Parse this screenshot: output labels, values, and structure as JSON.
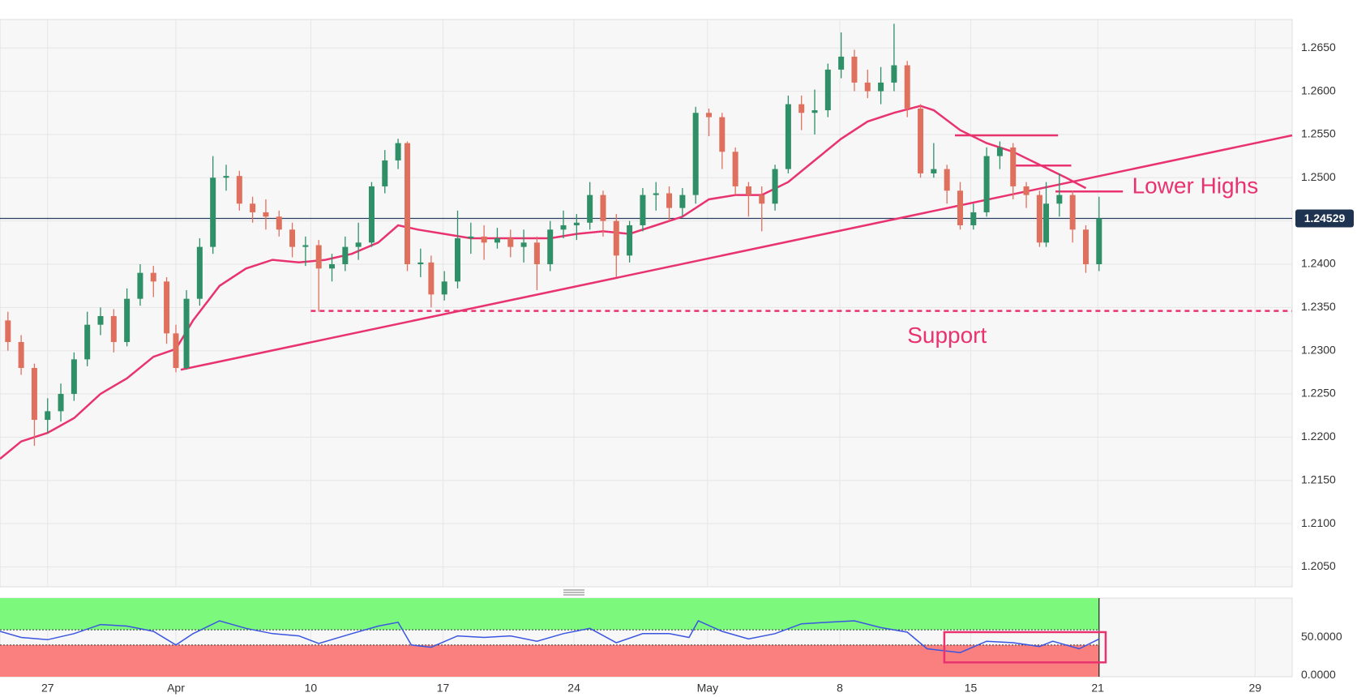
{
  "chart_data": [
    {
      "type": "candlestick",
      "xlim": [
        -0.36,
        9.41
      ],
      "ylim": [
        1.2027,
        1.2683
      ],
      "xticks": [
        {
          "value": 0,
          "label": "27"
        },
        {
          "value": 0.97,
          "label": "Apr"
        },
        {
          "value": 1.99,
          "label": "10"
        },
        {
          "value": 2.99,
          "label": "17"
        },
        {
          "value": 3.98,
          "label": "24"
        },
        {
          "value": 4.99,
          "label": "May"
        },
        {
          "value": 5.99,
          "label": "8"
        },
        {
          "value": 6.98,
          "label": "15"
        },
        {
          "value": 7.94,
          "label": "21"
        },
        {
          "value": 9.13,
          "label": "29"
        }
      ],
      "yticks": [
        {
          "value": 1.205,
          "label": "1.2050"
        },
        {
          "value": 1.21,
          "label": "1.2100"
        },
        {
          "value": 1.215,
          "label": "1.2150"
        },
        {
          "value": 1.22,
          "label": "1.2200"
        },
        {
          "value": 1.225,
          "label": "1.2250"
        },
        {
          "value": 1.23,
          "label": "1.2300"
        },
        {
          "value": 1.235,
          "label": "1.2350"
        },
        {
          "value": 1.24,
          "label": "1.2400"
        },
        {
          "value": 1.245,
          "label": "1.2450"
        },
        {
          "value": 1.25,
          "label": "1.2500"
        },
        {
          "value": 1.255,
          "label": "1.2550"
        },
        {
          "value": 1.26,
          "label": "1.2600"
        },
        {
          "value": 1.265,
          "label": "1.2650"
        }
      ],
      "grid": true,
      "up_color": "#2f8f67",
      "down_color": "#e0705e",
      "candles": {
        "x": [
          -0.3,
          -0.2,
          -0.1,
          0,
          0.1,
          0.2,
          0.3,
          0.4,
          0.5,
          0.6,
          0.7,
          0.8,
          0.9,
          0.97,
          1.05,
          1.15,
          1.25,
          1.35,
          1.45,
          1.55,
          1.65,
          1.75,
          1.85,
          1.95,
          2.05,
          2.15,
          2.25,
          2.35,
          2.45,
          2.55,
          2.65,
          2.72,
          2.82,
          2.9,
          3.0,
          3.1,
          3.2,
          3.3,
          3.4,
          3.5,
          3.6,
          3.7,
          3.8,
          3.9,
          4.0,
          4.1,
          4.2,
          4.3,
          4.4,
          4.5,
          4.6,
          4.7,
          4.8,
          4.9,
          5.0,
          5.1,
          5.2,
          5.3,
          5.4,
          5.5,
          5.6,
          5.7,
          5.8,
          5.9,
          6.0,
          6.1,
          6.2,
          6.3,
          6.4,
          6.5,
          6.6,
          6.7,
          6.8,
          6.9,
          7.0,
          7.1,
          7.2,
          7.3,
          7.4,
          7.5,
          7.55,
          7.65,
          7.75,
          7.85,
          7.95
        ],
        "open": [
          1.2335,
          1.231,
          1.228,
          1.222,
          1.223,
          1.225,
          1.229,
          1.233,
          1.234,
          1.231,
          1.236,
          1.239,
          1.238,
          1.232,
          1.228,
          1.236,
          1.242,
          1.25,
          1.2502,
          1.247,
          1.246,
          1.2455,
          1.244,
          1.242,
          1.2422,
          1.2395,
          1.24,
          1.242,
          1.2425,
          1.249,
          1.252,
          1.254,
          1.24,
          1.2402,
          1.2365,
          1.238,
          1.243,
          1.2432,
          1.2425,
          1.243,
          1.242,
          1.2425,
          1.24,
          1.244,
          1.2445,
          1.2448,
          1.248,
          1.245,
          1.241,
          1.2445,
          1.248,
          1.2482,
          1.2465,
          1.248,
          1.2575,
          1.257,
          1.253,
          1.249,
          1.248,
          1.247,
          1.251,
          1.2585,
          1.2575,
          1.2578,
          1.2625,
          1.264,
          1.261,
          1.26,
          1.261,
          1.263,
          1.258,
          1.2505,
          1.251,
          1.2485,
          1.2445,
          1.246,
          1.2525,
          1.2535,
          1.249,
          1.248,
          1.2425,
          1.247,
          1.248,
          1.244,
          1.24
        ],
        "high": [
          1.2345,
          1.2318,
          1.2285,
          1.2245,
          1.2262,
          1.2298,
          1.2345,
          1.235,
          1.2348,
          1.2372,
          1.24,
          1.2398,
          1.2385,
          1.233,
          1.237,
          1.243,
          1.2525,
          1.2515,
          1.2508,
          1.2478,
          1.2475,
          1.2462,
          1.2448,
          1.2432,
          1.2428,
          1.2412,
          1.2432,
          1.2448,
          1.2495,
          1.2532,
          1.2545,
          1.2542,
          1.2418,
          1.241,
          1.2392,
          1.2462,
          1.2448,
          1.2445,
          1.2442,
          1.244,
          1.244,
          1.2432,
          1.245,
          1.2462,
          1.2458,
          1.2495,
          1.2485,
          1.2458,
          1.245,
          1.2488,
          1.2495,
          1.249,
          1.2488,
          1.2582,
          1.258,
          1.2575,
          1.2535,
          1.2495,
          1.249,
          1.2515,
          1.2595,
          1.2595,
          1.2602,
          1.2632,
          1.2668,
          1.2648,
          1.2625,
          1.2628,
          1.2678,
          1.2635,
          1.2585,
          1.254,
          1.2515,
          1.2495,
          1.247,
          1.2535,
          1.2542,
          1.254,
          1.2495,
          1.2485,
          1.2495,
          1.2505,
          1.2485,
          1.2445,
          1.2478
        ],
        "low": [
          1.23,
          1.2272,
          1.219,
          1.2205,
          1.2218,
          1.2242,
          1.2282,
          1.2318,
          1.2298,
          1.2305,
          1.2352,
          1.2362,
          1.2308,
          1.2275,
          1.2278,
          1.2352,
          1.2412,
          1.2485,
          1.2462,
          1.2448,
          1.244,
          1.2432,
          1.2408,
          1.2398,
          1.2345,
          1.238,
          1.2392,
          1.2405,
          1.242,
          1.2482,
          1.251,
          1.2392,
          1.2385,
          1.235,
          1.2358,
          1.2372,
          1.2412,
          1.2405,
          1.2418,
          1.2408,
          1.2402,
          1.237,
          1.2392,
          1.243,
          1.2428,
          1.244,
          1.2432,
          1.2385,
          1.2402,
          1.2438,
          1.2462,
          1.245,
          1.2455,
          1.247,
          1.2548,
          1.251,
          1.248,
          1.2455,
          1.2438,
          1.2462,
          1.2505,
          1.2555,
          1.255,
          1.257,
          1.2615,
          1.26,
          1.2592,
          1.2585,
          1.26,
          1.257,
          1.25,
          1.25,
          1.247,
          1.244,
          1.244,
          1.2455,
          1.251,
          1.2475,
          1.2465,
          1.242,
          1.242,
          1.2455,
          1.2425,
          1.239,
          1.2392
        ],
        "close": [
          1.231,
          1.228,
          1.222,
          1.223,
          1.225,
          1.229,
          1.233,
          1.234,
          1.231,
          1.236,
          1.239,
          1.238,
          1.232,
          1.228,
          1.236,
          1.242,
          1.25,
          1.2502,
          1.247,
          1.246,
          1.2455,
          1.244,
          1.242,
          1.2422,
          1.2395,
          1.24,
          1.242,
          1.2425,
          1.249,
          1.252,
          1.254,
          1.24,
          1.2402,
          1.2365,
          1.238,
          1.243,
          1.2432,
          1.2425,
          1.243,
          1.242,
          1.2425,
          1.24,
          1.244,
          1.2445,
          1.2448,
          1.248,
          1.245,
          1.241,
          1.2445,
          1.248,
          1.2482,
          1.2465,
          1.248,
          1.2575,
          1.257,
          1.253,
          1.249,
          1.248,
          1.247,
          1.251,
          1.2585,
          1.2575,
          1.2578,
          1.2625,
          1.264,
          1.261,
          1.26,
          1.261,
          1.263,
          1.258,
          1.2505,
          1.251,
          1.2485,
          1.2445,
          1.246,
          1.2525,
          1.2535,
          1.249,
          1.248,
          1.2425,
          1.247,
          1.248,
          1.244,
          1.24,
          1.2453
        ]
      },
      "lines": [
        {
          "color": "#e8336f",
          "x": [
            -0.36,
            -0.2,
            0,
            0.2,
            0.4,
            0.6,
            0.8,
            0.97,
            1.1,
            1.3,
            1.5,
            1.7,
            1.9,
            2.1,
            2.3,
            2.5,
            2.65,
            2.8,
            3.0,
            3.2,
            3.5,
            3.8,
            4.0,
            4.2,
            4.4,
            4.6,
            4.8,
            5.0,
            5.2,
            5.4,
            5.6,
            5.8,
            6.0,
            6.2,
            6.4,
            6.6,
            6.7,
            6.9,
            7.1,
            7.3,
            7.5,
            7.7,
            7.85
          ],
          "values": [
            1.2175,
            1.2195,
            1.2205,
            1.2222,
            1.225,
            1.2268,
            1.2293,
            1.2302,
            1.2335,
            1.2375,
            1.2395,
            1.2405,
            1.2402,
            1.2405,
            1.2412,
            1.2425,
            1.2445,
            1.244,
            1.2435,
            1.243,
            1.243,
            1.243,
            1.2435,
            1.2438,
            1.2435,
            1.2445,
            1.2455,
            1.2475,
            1.248,
            1.248,
            1.2495,
            1.252,
            1.2545,
            1.2565,
            1.2575,
            1.2583,
            1.2578,
            1.2555,
            1.254,
            1.253,
            1.2515,
            1.25,
            1.2488
          ]
        },
        {
          "color": "#e8336f",
          "x": [
            1.007,
            9.41
          ],
          "values": [
            1.2278,
            1.2549
          ]
        },
        {
          "color": "#e8336f",
          "x": [
            6.86,
            7.64
          ],
          "values": [
            1.2549,
            1.2549
          ]
        },
        {
          "color": "#e8336f",
          "x": [
            7.3,
            7.74
          ],
          "values": [
            1.2514,
            1.2514
          ]
        },
        {
          "color": "#e8336f",
          "x": [
            7.62,
            8.13
          ],
          "values": [
            1.2484,
            1.2484
          ]
        },
        {
          "color": "#e8336f",
          "dashed": true,
          "x": [
            1.99,
            9.41
          ],
          "values": [
            1.2346,
            1.2346
          ]
        }
      ],
      "texts": [
        {
          "text": "Lower Highs",
          "x": 8.2,
          "y": 1.2489
        },
        {
          "text": "Support",
          "x": 6.5,
          "y": 1.2316
        }
      ],
      "current_price": {
        "value": 1.24529,
        "label": "1.24529"
      }
    },
    {
      "type": "line",
      "xlim": [
        -0.36,
        9.41
      ],
      "ylim": [
        -2,
        102
      ],
      "yticks": [
        {
          "value": 50,
          "label": "50.0000"
        },
        {
          "value": 0,
          "label": "0.0000"
        }
      ],
      "bands": [
        {
          "from": 60,
          "to": 102,
          "color": "#7cf97c"
        },
        {
          "from": -2,
          "to": 40,
          "color": "#fa8080"
        }
      ],
      "band_end": 7.95,
      "levels": [
        60,
        40
      ],
      "color": "#3a55e0",
      "x": [
        -0.36,
        -0.2,
        0,
        0.2,
        0.4,
        0.6,
        0.8,
        0.97,
        1.1,
        1.3,
        1.5,
        1.7,
        1.9,
        2.05,
        2.3,
        2.5,
        2.65,
        2.75,
        2.9,
        3.1,
        3.3,
        3.5,
        3.7,
        3.9,
        4.1,
        4.3,
        4.5,
        4.7,
        4.85,
        4.92,
        5.1,
        5.3,
        5.5,
        5.7,
        5.9,
        6.1,
        6.3,
        6.5,
        6.65,
        6.9,
        7.1,
        7.3,
        7.5,
        7.6,
        7.8,
        7.95
      ],
      "values": [
        58,
        50,
        47,
        55,
        67,
        65,
        58,
        40,
        55,
        72,
        62,
        55,
        52,
        42,
        55,
        65,
        70,
        40,
        37,
        52,
        50,
        52,
        45,
        55,
        62,
        43,
        55,
        55,
        50,
        72,
        58,
        48,
        55,
        68,
        70,
        72,
        63,
        57,
        35,
        30,
        45,
        43,
        38,
        45,
        35,
        48
      ],
      "box": {
        "x": [
          6.78,
          8.0
        ],
        "y": [
          17,
          57
        ],
        "color": "#e8336f"
      }
    }
  ]
}
